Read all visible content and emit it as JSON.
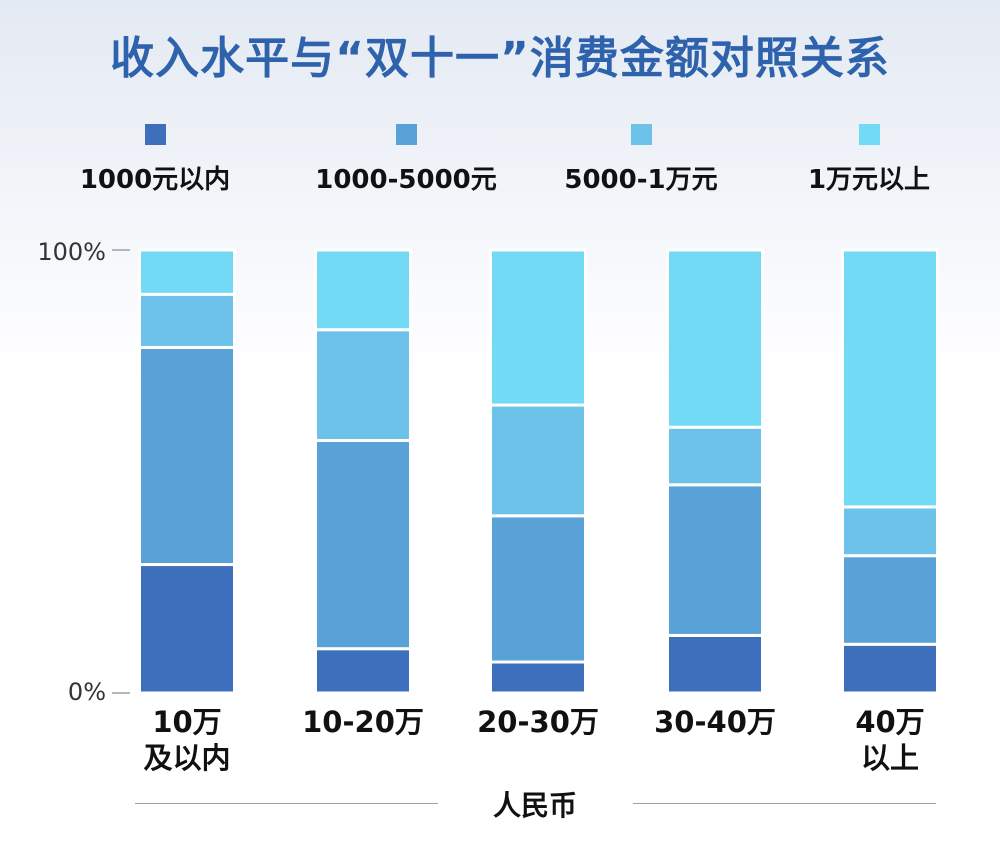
{
  "title": "收入水平与“双十一”消费金额对照关系",
  "legend": [
    {
      "label": "1000元以内",
      "color": "#3d6fbd"
    },
    {
      "label": "1000-5000元",
      "color": "#58a2d8"
    },
    {
      "label": "5000-1万元",
      "color": "#6cc2e8"
    },
    {
      "label": "1万元以上",
      "color": "#72daf4"
    }
  ],
  "axis": {
    "y_top_label": "100%",
    "y_bottom_label": "0%",
    "x_label": "人民币"
  },
  "categories": [
    {
      "line1": "10万",
      "line2": "及以内"
    },
    {
      "line1": "10-20万",
      "line2": ""
    },
    {
      "line1": "20-30万",
      "line2": ""
    },
    {
      "line1": "30-40万",
      "line2": ""
    },
    {
      "line1": "40万",
      "line2": "以上"
    }
  ],
  "chart_data": {
    "type": "bar",
    "stacked": true,
    "title": "收入水平与“双十一”消费金额对照关系",
    "categories": [
      "10万及以内",
      "10-20万",
      "20-30万",
      "30-40万",
      "40万以上"
    ],
    "xlabel": "人民币",
    "ylabel": "",
    "ylim": [
      0,
      100
    ],
    "yticks": [
      "0%",
      "100%"
    ],
    "legend_position": "top",
    "series": [
      {
        "name": "1000元以内",
        "color": "#3d6fbd",
        "values": [
          29,
          10,
          7,
          13,
          11
        ]
      },
      {
        "name": "1000-5000元",
        "color": "#58a2d8",
        "values": [
          49,
          47,
          33,
          34,
          20
        ]
      },
      {
        "name": "5000-1万元",
        "color": "#6cc2e8",
        "values": [
          12,
          25,
          25,
          13,
          11
        ]
      },
      {
        "name": "1万元以上",
        "color": "#72daf4",
        "values": [
          10,
          18,
          35,
          40,
          58
        ]
      }
    ]
  }
}
